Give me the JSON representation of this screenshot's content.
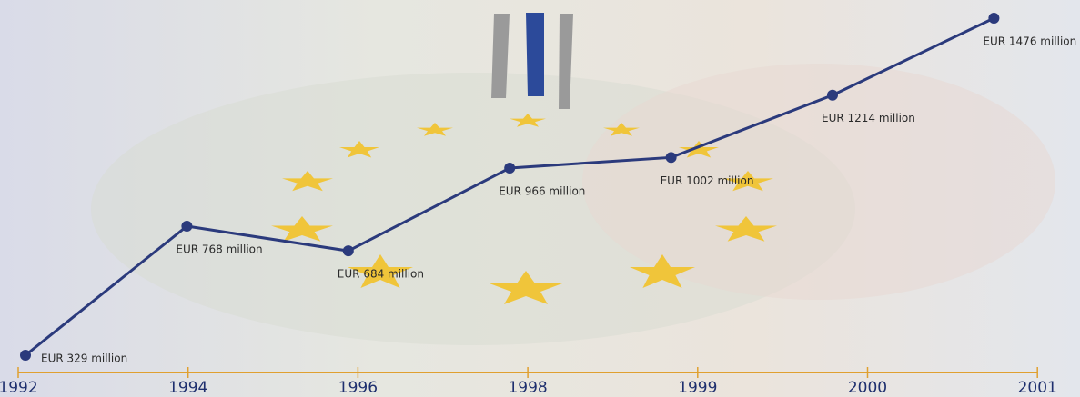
{
  "chart_data": {
    "type": "line",
    "categories": [
      "1992",
      "1994",
      "1996",
      "1998",
      "1999",
      "2000",
      "2001"
    ],
    "values": [
      329,
      768,
      684,
      966,
      1002,
      1214,
      1476
    ],
    "value_labels": [
      "EUR 329 million",
      "EUR 768 million",
      "EUR 684 million",
      "EUR 966 million",
      "EUR 1002 million",
      "EUR 1214 million",
      "EUR 1476 million"
    ],
    "color": "#2b3a7c"
  }
}
